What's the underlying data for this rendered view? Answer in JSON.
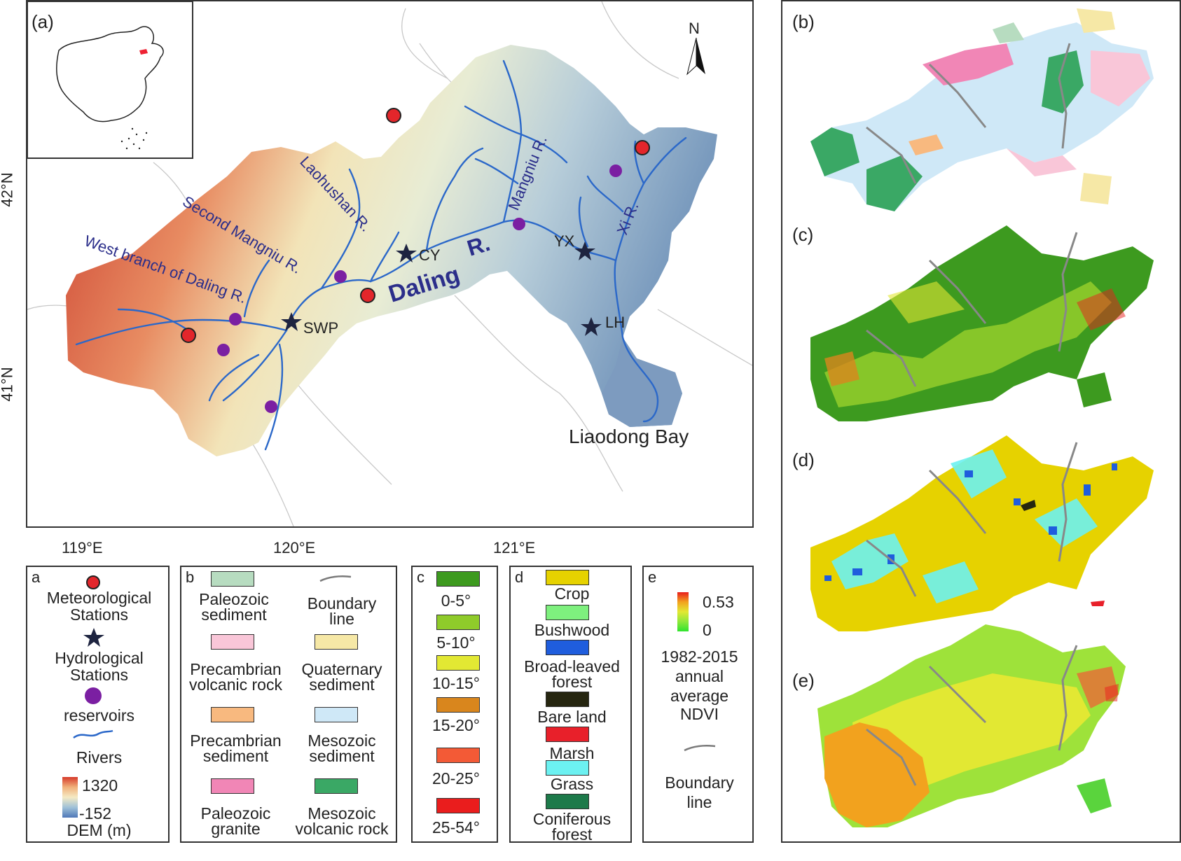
{
  "main_map": {
    "panel_label": "(a)",
    "north": "N",
    "rivers": {
      "daling": "Daling",
      "daling_r": "R.",
      "laohushan": "Laohushan R.",
      "second_mangniu": "Second Mangniu R.",
      "west_branch": "West branch of Daling R.",
      "mangniu": "Mangniu R.",
      "xi": "Xi R."
    },
    "stations": {
      "cy": "CY",
      "yx": "YX",
      "lh": "LH",
      "swp": "SWP"
    },
    "bay": "Liaodong Bay",
    "lon_ticks": [
      "119°E",
      "120°E",
      "121°E"
    ],
    "lat_ticks": [
      "42°N",
      "41°N"
    ]
  },
  "panels": {
    "b": "(b)",
    "c": "(c)",
    "d": "(d)",
    "e": "(e)"
  },
  "legend_a": {
    "key": "a",
    "met": "Meteorological Stations",
    "met1": "Meteorological",
    "met2": "Stations",
    "hyd1": "Hydrological",
    "hyd2": "Stations",
    "res": "reservoirs",
    "rivers": "Rivers",
    "dem_max": "1320",
    "dem_min": "-152",
    "dem_label": "DEM (m)"
  },
  "legend_b": {
    "key": "b",
    "items": [
      {
        "l1": "Paleozoic",
        "l2": "sediment",
        "color": "#b7dcc0"
      },
      {
        "l1": "Boundary",
        "l2": "line",
        "color": "#7a7a7a"
      },
      {
        "l1": "Precambrian",
        "l2": "volcanic rock",
        "color": "#f9c6d8"
      },
      {
        "l1": "Quaternary",
        "l2": "sediment",
        "color": "#f6e8a6"
      },
      {
        "l1": "Precambrian",
        "l2": "sediment",
        "color": "#f8b97f"
      },
      {
        "l1": "Mesozoic",
        "l2": "sediment",
        "color": "#cfe8f7"
      },
      {
        "l1": "Paleozoic",
        "l2": "granite",
        "color": "#f186b6"
      },
      {
        "l1": "Mesozoic",
        "l2": "volcanic rock",
        "color": "#3aa865"
      }
    ]
  },
  "legend_c": {
    "key": "c",
    "items": [
      {
        "label": "0-5°",
        "color": "#3d9a1f"
      },
      {
        "label": "5-10°",
        "color": "#8fcb2a"
      },
      {
        "label": "10-15°",
        "color": "#e2e833"
      },
      {
        "label": "15-20°",
        "color": "#d9861d"
      },
      {
        "label": "20-25°",
        "color": "#f35a36"
      },
      {
        "label": "25-54°",
        "color": "#ea1d1d"
      }
    ]
  },
  "legend_d": {
    "key": "d",
    "items": [
      {
        "l1": "Crop",
        "l2": "",
        "color": "#e6d200"
      },
      {
        "l1": "Bushwood",
        "l2": "",
        "color": "#7ef07e"
      },
      {
        "l1": "Broad-leaved",
        "l2": "forest",
        "color": "#1f5ddd"
      },
      {
        "l1": "Bare land",
        "l2": "",
        "color": "#262610"
      },
      {
        "l1": "Marsh",
        "l2": "",
        "color": "#e8202a"
      },
      {
        "l1": "Grass",
        "l2": "",
        "color": "#6cf1f1"
      },
      {
        "l1": "Coniferous",
        "l2": "forest",
        "color": "#1d7a4a"
      }
    ]
  },
  "legend_e": {
    "key": "e",
    "max": "0.53",
    "min": "0",
    "t1": "1982-2015",
    "t2": "annual",
    "t3": "average",
    "t4": "NDVI",
    "b1": "Boundary",
    "b2": "line"
  }
}
